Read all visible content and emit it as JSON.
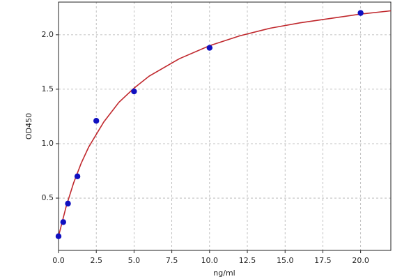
{
  "chart_data": {
    "type": "scatter",
    "x_label": "ng/ml",
    "y_label": "OD450",
    "x": [
      0,
      0.312,
      0.625,
      1.25,
      2.5,
      5,
      10,
      20
    ],
    "values": [
      0.15,
      0.28,
      0.45,
      0.7,
      1.21,
      1.48,
      1.88,
      2.2
    ],
    "color": "#1010c0",
    "fit": {
      "x": [
        0,
        0.5,
        1,
        1.5,
        2,
        3,
        4,
        5,
        6,
        8,
        10,
        12,
        14,
        16,
        18,
        20,
        22
      ],
      "values": [
        0.15,
        0.42,
        0.64,
        0.82,
        0.97,
        1.2,
        1.38,
        1.51,
        1.62,
        1.78,
        1.9,
        1.99,
        2.06,
        2.11,
        2.15,
        2.19,
        2.22
      ],
      "color": "#c0282d"
    },
    "xlim": [
      0,
      22
    ],
    "ylim": [
      0.02,
      2.3
    ],
    "xticks": [
      {
        "value": 0,
        "label": "0.0"
      },
      2.5,
      {
        "value": 5,
        "label": "5.0"
      },
      7.5,
      {
        "value": 10,
        "label": "10.0"
      },
      12.5,
      {
        "value": 15,
        "label": "15.0"
      },
      17.5,
      {
        "value": 20,
        "label": "20.0"
      }
    ],
    "yticks": [
      0.5,
      {
        "value": 1,
        "label": "1.0"
      },
      1.5,
      {
        "value": 2,
        "label": "2.0"
      }
    ],
    "grid": true
  }
}
